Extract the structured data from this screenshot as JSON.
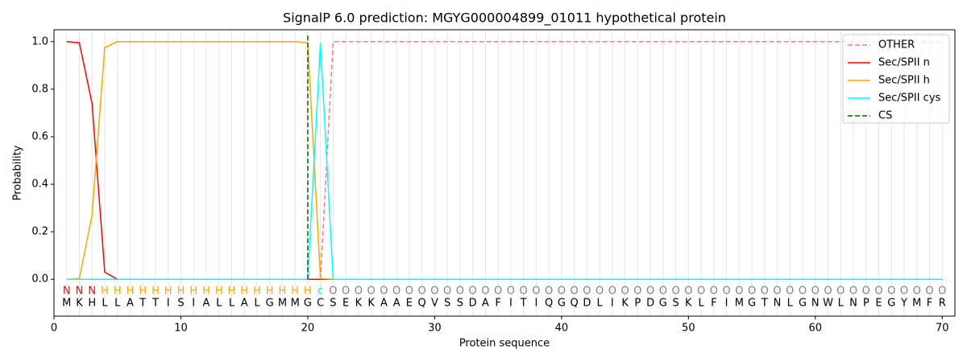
{
  "chart_data": {
    "type": "line",
    "title": "SignalP 6.0 prediction: MGYG000004899_01011 hypothetical protein",
    "xlabel": "Protein sequence",
    "ylabel": "Probability",
    "x": [
      1,
      2,
      3,
      4,
      5,
      6,
      7,
      8,
      9,
      10,
      11,
      12,
      13,
      14,
      15,
      16,
      17,
      18,
      19,
      20,
      21,
      22,
      23,
      24,
      25,
      26,
      27,
      28,
      29,
      30,
      31,
      32,
      33,
      34,
      35,
      36,
      37,
      38,
      39,
      40,
      41,
      42,
      43,
      44,
      45,
      46,
      47,
      48,
      49,
      50,
      51,
      52,
      53,
      54,
      55,
      56,
      57,
      58,
      59,
      60,
      61,
      62,
      63,
      64,
      65,
      66,
      67,
      68,
      69,
      70
    ],
    "sequence": [
      "M",
      "K",
      "H",
      "L",
      "L",
      "A",
      "T",
      "T",
      "I",
      "S",
      "I",
      "A",
      "L",
      "L",
      "A",
      "L",
      "G",
      "M",
      "M",
      "G",
      "C",
      "S",
      "E",
      "K",
      "K",
      "A",
      "A",
      "E",
      "Q",
      "V",
      "S",
      "S",
      "D",
      "A",
      "F",
      "I",
      "T",
      "I",
      "Q",
      "G",
      "Q",
      "D",
      "L",
      "I",
      "K",
      "P",
      "D",
      "G",
      "S",
      "K",
      "L",
      "F",
      "I",
      "M",
      "G",
      "T",
      "N",
      "L",
      "G",
      "N",
      "W",
      "L",
      "N",
      "P",
      "E",
      "G",
      "Y",
      "M",
      "F",
      "R"
    ],
    "region_labels": [
      "N",
      "N",
      "N",
      "H",
      "H",
      "H",
      "H",
      "H",
      "H",
      "H",
      "H",
      "H",
      "H",
      "H",
      "H",
      "H",
      "H",
      "H",
      "H",
      "H",
      "c",
      "O",
      "O",
      "O",
      "O",
      "O",
      "O",
      "O",
      "O",
      "O",
      "O",
      "O",
      "O",
      "O",
      "O",
      "O",
      "O",
      "O",
      "O",
      "O",
      "O",
      "O",
      "O",
      "O",
      "O",
      "O",
      "O",
      "O",
      "O",
      "O",
      "O",
      "O",
      "O",
      "O",
      "O",
      "O",
      "O",
      "O",
      "O",
      "O",
      "O",
      "O",
      "O",
      "O",
      "O",
      "O",
      "O",
      "O",
      "O",
      "O"
    ],
    "region_colors": {
      "N": "#ff0000",
      "H": "#ffa500",
      "c": "#00e5e5",
      "O": "#808080"
    },
    "series": [
      {
        "name": "OTHER",
        "color": "#f08080",
        "dashed": true,
        "values": [
          0,
          0,
          0,
          0,
          0,
          0,
          0,
          0,
          0,
          0,
          0,
          0,
          0,
          0,
          0,
          0,
          0,
          0,
          0,
          0,
          0,
          1,
          1,
          1,
          1,
          1,
          1,
          1,
          1,
          1,
          1,
          1,
          1,
          1,
          1,
          1,
          1,
          1,
          1,
          1,
          1,
          1,
          1,
          1,
          1,
          1,
          1,
          1,
          1,
          1,
          1,
          1,
          1,
          1,
          1,
          1,
          1,
          1,
          1,
          1,
          1,
          1,
          1,
          1,
          1,
          1,
          1,
          1,
          1,
          1
        ]
      },
      {
        "name": "Sec/SPII n",
        "color": "#ff0000",
        "values": [
          1.0,
          0.995,
          0.74,
          0.03,
          0,
          0,
          0,
          0,
          0,
          0,
          0,
          0,
          0,
          0,
          0,
          0,
          0,
          0,
          0,
          0,
          0,
          0,
          0,
          0,
          0,
          0,
          0,
          0,
          0,
          0,
          0,
          0,
          0,
          0,
          0,
          0,
          0,
          0,
          0,
          0,
          0,
          0,
          0,
          0,
          0,
          0,
          0,
          0,
          0,
          0,
          0,
          0,
          0,
          0,
          0,
          0,
          0,
          0,
          0,
          0,
          0,
          0,
          0,
          0,
          0,
          0,
          0,
          0,
          0,
          0
        ]
      },
      {
        "name": "Sec/SPII h",
        "color": "#ffa500",
        "values": [
          0,
          0.003,
          0.27,
          0.975,
          1,
          1,
          1,
          1,
          1,
          1,
          1,
          1,
          1,
          1,
          1,
          1,
          1,
          1,
          1,
          0.995,
          0.003,
          0,
          0,
          0,
          0,
          0,
          0,
          0,
          0,
          0,
          0,
          0,
          0,
          0,
          0,
          0,
          0,
          0,
          0,
          0,
          0,
          0,
          0,
          0,
          0,
          0,
          0,
          0,
          0,
          0,
          0,
          0,
          0,
          0,
          0,
          0,
          0,
          0,
          0,
          0,
          0,
          0,
          0,
          0,
          0,
          0,
          0,
          0,
          0,
          0
        ]
      },
      {
        "name": "Sec/SPII cys",
        "color": "#00ffff",
        "values": [
          0,
          0,
          0,
          0,
          0,
          0,
          0,
          0,
          0,
          0,
          0,
          0,
          0,
          0,
          0,
          0,
          0,
          0,
          0,
          0,
          0.995,
          0,
          0,
          0,
          0,
          0,
          0,
          0,
          0,
          0,
          0,
          0,
          0,
          0,
          0,
          0,
          0,
          0,
          0,
          0,
          0,
          0,
          0,
          0,
          0,
          0,
          0,
          0,
          0,
          0,
          0,
          0,
          0,
          0,
          0,
          0,
          0,
          0,
          0,
          0,
          0,
          0,
          0,
          0,
          0,
          0,
          0,
          0,
          0,
          0
        ]
      }
    ],
    "markers": [
      {
        "name": "CS",
        "x": 20,
        "color": "#006400"
      }
    ],
    "xlim": [
      0,
      71
    ],
    "ylim": [
      -0.155,
      1.05
    ],
    "xticks": [
      0,
      10,
      20,
      30,
      40,
      50,
      60,
      70
    ],
    "yticks": [
      {
        "value": 0,
        "label": "0.0"
      },
      {
        "value": 0.2,
        "label": "0.2"
      },
      {
        "value": 0.4,
        "label": "0.4"
      },
      {
        "value": 0.6,
        "label": "0.6"
      },
      {
        "value": 0.8,
        "label": "0.8"
      },
      {
        "value": 1,
        "label": "1.0"
      }
    ],
    "legend": "upper right"
  }
}
